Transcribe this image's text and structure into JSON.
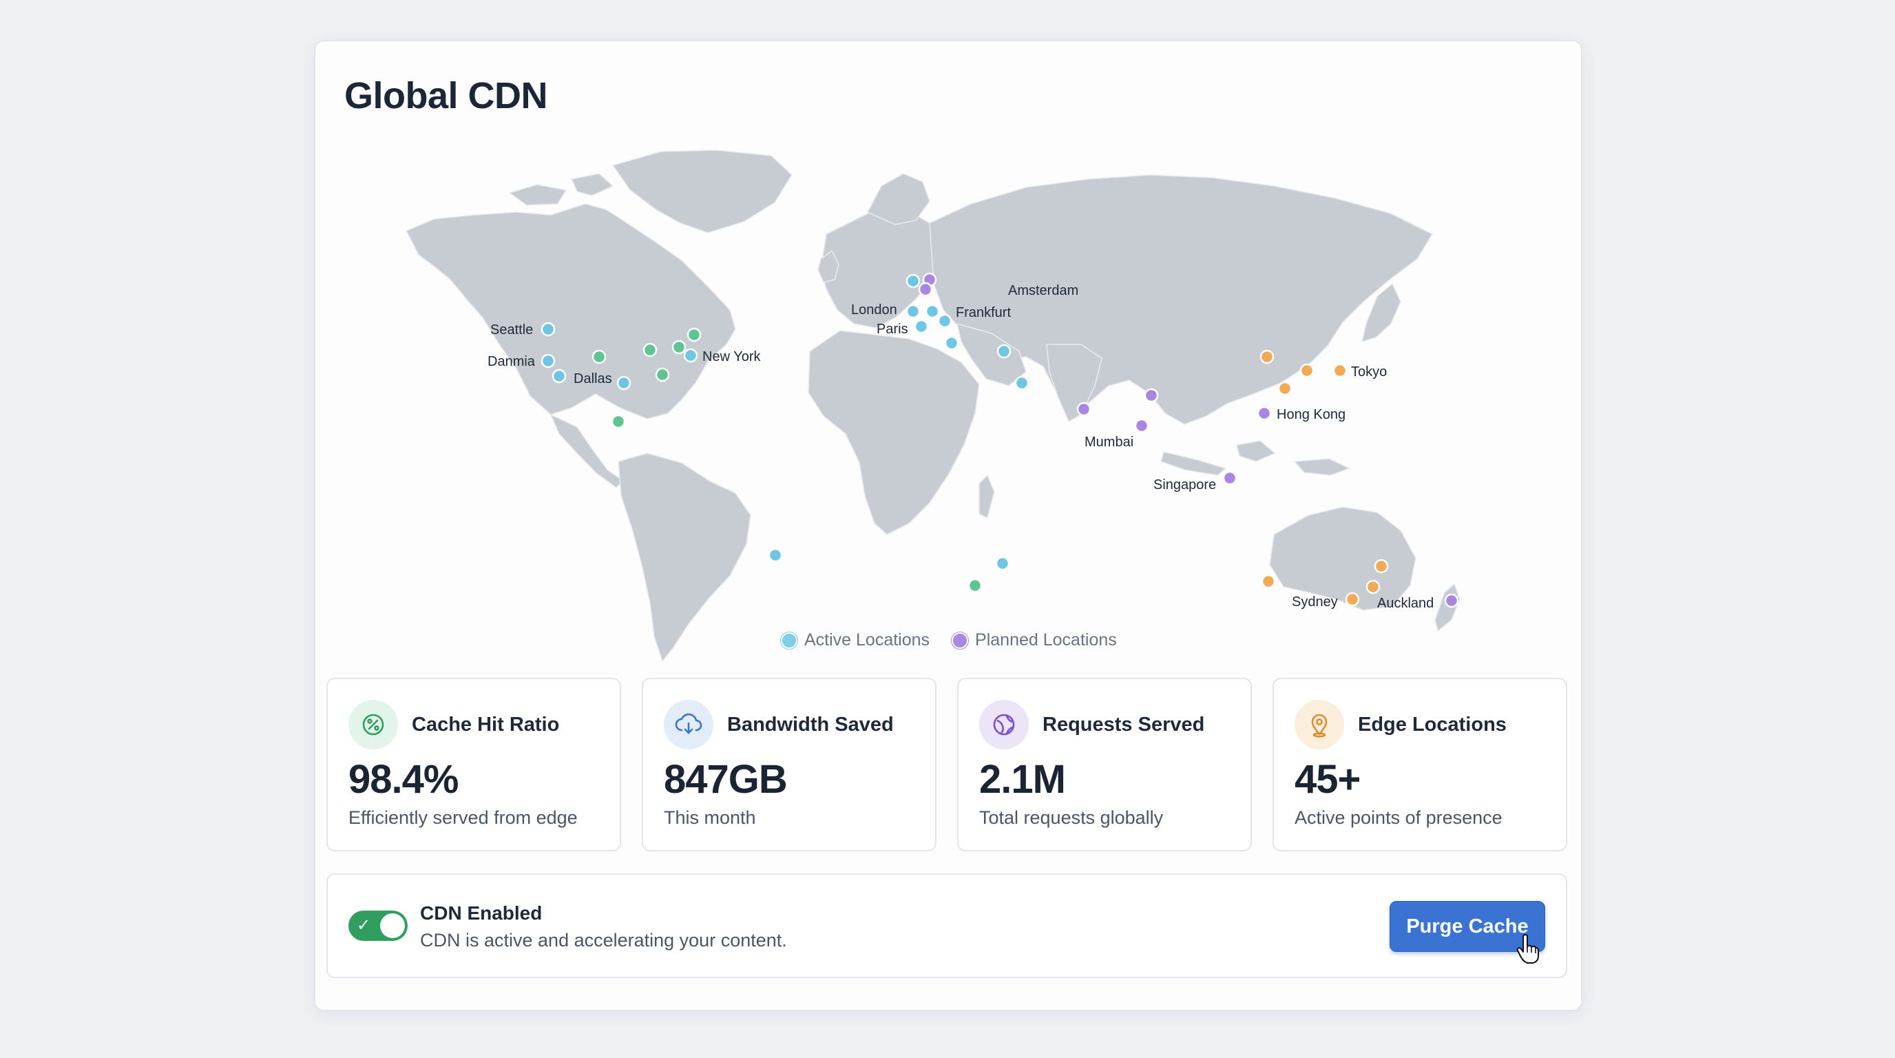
{
  "page": {
    "title": "Global CDN"
  },
  "map": {
    "legend": [
      {
        "label": "Active Locations",
        "color": "#7fcde6"
      },
      {
        "label": "Planned Locations",
        "color": "#a88be0"
      }
    ],
    "colors": {
      "active": "#6ec6e4",
      "planned": "#a886e2",
      "green": "#5fc490",
      "orange": "#f2aa55"
    },
    "labels": {
      "seattle": "Seattle",
      "danmia": "Danmia",
      "dallas": "Dallas",
      "new_york": "New York",
      "london": "London",
      "paris": "Paris",
      "frankfurt": "Frankfurt",
      "amsterdam": "Amsterdam",
      "mumbai": "Mumbai",
      "singapore": "Singapore",
      "hong_kong": "Hong Kong",
      "tokyo": "Tokyo",
      "sydney": "Sydney",
      "auckland": "Auckland"
    }
  },
  "stats": [
    {
      "label": "Cache Hit Ratio",
      "value": "98.4%",
      "sub": "Efficiently served from edge",
      "icon": "percent-gauge-icon"
    },
    {
      "label": "Bandwidth Saved",
      "value": "847GB",
      "sub": "This month",
      "icon": "cloud-download-icon"
    },
    {
      "label": "Requests Served",
      "value": "2.1M",
      "sub": "Total requests globally",
      "icon": "globe-icon"
    },
    {
      "label": "Edge Locations",
      "value": "45+",
      "sub": "Active points of presence",
      "icon": "map-pin-icon"
    }
  ],
  "cdn": {
    "enabled": true,
    "title": "CDN Enabled",
    "description": "CDN is active and accelerating your content.",
    "purge_label": "Purge Cache"
  }
}
